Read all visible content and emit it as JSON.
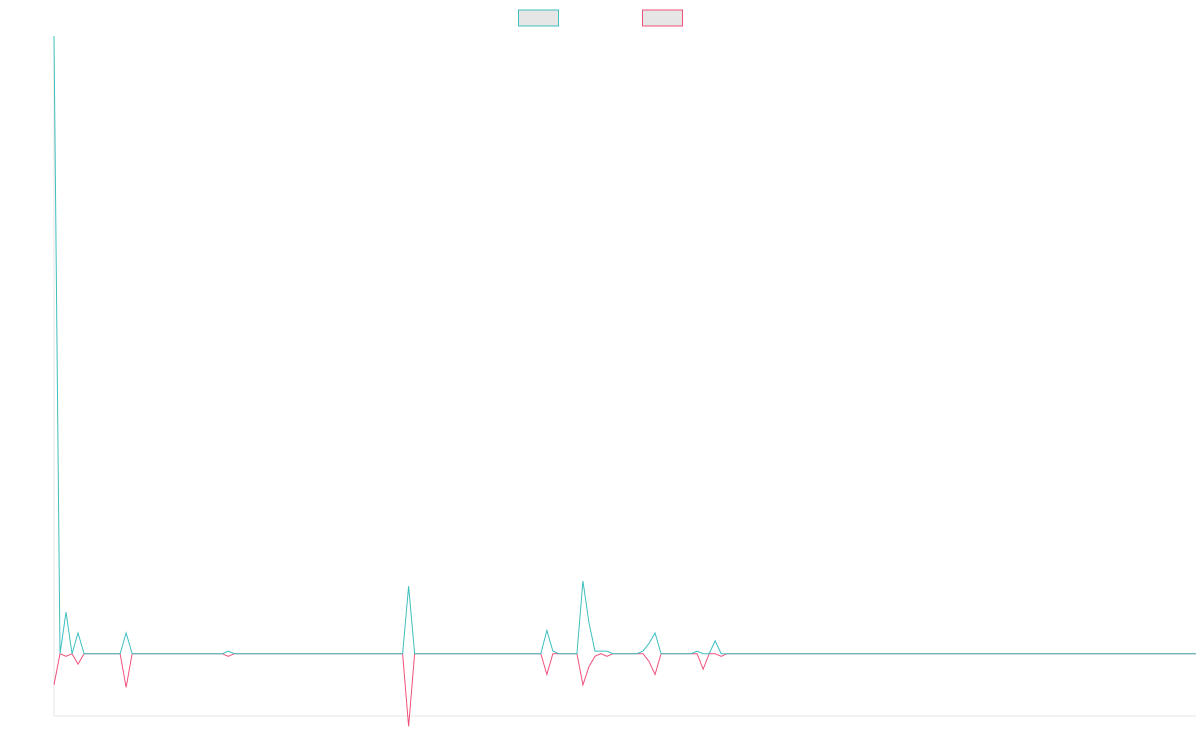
{
  "chart_data": {
    "type": "line",
    "title": "",
    "xlabel": "",
    "ylabel": "",
    "grid": false,
    "legend": "top-center",
    "y_range": [
      -1.2,
      11.9
    ],
    "x": [
      0,
      1,
      2,
      3,
      4,
      5,
      6,
      7,
      8,
      9,
      10,
      11,
      12,
      13,
      14,
      15,
      16,
      17,
      18,
      19,
      20,
      21,
      22,
      23,
      24,
      25,
      26,
      27,
      28,
      29,
      30,
      31,
      32,
      33,
      34,
      35,
      36,
      37,
      38,
      39,
      40,
      41,
      42,
      43,
      44,
      45,
      46,
      47,
      48,
      49,
      50,
      51,
      52,
      53,
      54,
      55,
      56,
      57,
      58,
      59,
      60,
      61,
      62,
      63,
      64,
      65,
      66,
      67,
      68,
      69,
      70,
      71,
      72,
      73,
      74,
      75,
      76,
      77,
      78,
      79,
      80,
      81,
      82,
      83,
      84,
      85,
      86,
      87,
      88,
      89,
      90,
      91,
      92,
      93,
      94,
      95,
      96,
      97,
      98,
      99,
      100,
      101,
      102,
      103,
      104,
      105,
      106,
      107,
      108,
      109,
      110,
      111,
      112,
      113,
      114,
      115,
      116,
      117,
      118,
      119,
      120,
      121,
      122,
      123,
      124,
      125,
      126,
      127,
      128,
      129,
      130,
      131,
      132,
      133,
      134,
      135,
      136,
      137,
      138,
      139,
      140,
      141,
      142,
      143,
      144,
      145,
      146,
      147,
      148,
      149,
      150,
      151,
      152,
      153,
      154,
      155,
      156,
      157,
      158,
      159,
      160,
      161,
      162,
      163,
      164,
      165,
      166,
      167,
      168,
      169,
      170,
      171,
      172,
      173,
      174,
      175,
      176,
      177,
      178,
      179,
      180,
      181,
      182,
      183,
      184,
      185,
      186,
      187,
      188,
      189,
      190
    ],
    "series": [
      {
        "name": "",
        "color": "#3fbfbf",
        "values": [
          11.9,
          0,
          0.8,
          0,
          0.4,
          0,
          0,
          0,
          0,
          0,
          0,
          0,
          0.4,
          0,
          0,
          0,
          0,
          0,
          0,
          0,
          0,
          0,
          0,
          0,
          0,
          0,
          0,
          0,
          0,
          0.05,
          0,
          0,
          0,
          0,
          0,
          0,
          0,
          0,
          0,
          0,
          0,
          0,
          0,
          0,
          0,
          0,
          0,
          0,
          0,
          0,
          0,
          0,
          0,
          0,
          0,
          0,
          0,
          0,
          0,
          1.3,
          0,
          0,
          0,
          0,
          0,
          0,
          0,
          0,
          0,
          0,
          0,
          0,
          0,
          0,
          0,
          0,
          0,
          0,
          0,
          0,
          0,
          0,
          0.45,
          0.05,
          0,
          0,
          0,
          0,
          1.4,
          0.6,
          0.05,
          0.05,
          0.05,
          0,
          0,
          0,
          0,
          0,
          0.05,
          0.2,
          0.4,
          0,
          0,
          0,
          0,
          0,
          0,
          0.05,
          0,
          0,
          0.25,
          0,
          0,
          0,
          0,
          0,
          0,
          0,
          0,
          0,
          0,
          0,
          0,
          0,
          0,
          0,
          0,
          0,
          0,
          0,
          0,
          0,
          0,
          0,
          0,
          0,
          0,
          0,
          0,
          0,
          0,
          0,
          0,
          0,
          0,
          0,
          0,
          0,
          0,
          0,
          0,
          0,
          0,
          0,
          0,
          0,
          0,
          0,
          0,
          0,
          0,
          0,
          0,
          0,
          0,
          0,
          0,
          0,
          0,
          0,
          0,
          0,
          0,
          0,
          0,
          0,
          0,
          0,
          0,
          0,
          0,
          0,
          0,
          0,
          0,
          0,
          0,
          0,
          0,
          0,
          0
        ]
      },
      {
        "name": "",
        "color": "#f0507a",
        "values": [
          -0.6,
          0,
          -0.05,
          0,
          -0.2,
          0,
          0,
          0,
          0,
          0,
          0,
          0,
          -0.65,
          0,
          0,
          0,
          0,
          0,
          0,
          0,
          0,
          0,
          0,
          0,
          0,
          0,
          0,
          0,
          0,
          -0.05,
          0,
          0,
          0,
          0,
          0,
          0,
          0,
          0,
          0,
          0,
          0,
          0,
          0,
          0,
          0,
          0,
          0,
          0,
          0,
          0,
          0,
          0,
          0,
          0,
          0,
          0,
          0,
          0,
          0,
          -1.4,
          0,
          0,
          0,
          0,
          0,
          0,
          0,
          0,
          0,
          0,
          0,
          0,
          0,
          0,
          0,
          0,
          0,
          0,
          0,
          0,
          0,
          0,
          -0.4,
          0,
          0,
          0,
          0,
          0,
          -0.6,
          -0.25,
          -0.05,
          0,
          -0.05,
          0,
          0,
          0,
          0,
          0,
          0,
          -0.15,
          -0.4,
          0,
          0,
          0,
          0,
          0,
          0,
          0,
          -0.3,
          0,
          0,
          -0.05,
          0,
          0,
          0,
          0,
          0,
          0,
          0,
          0,
          0,
          0,
          0,
          0,
          0,
          0,
          0,
          0,
          0,
          0,
          0,
          0,
          0,
          0,
          0,
          0,
          0,
          0,
          0,
          0,
          0,
          0,
          0,
          0,
          0,
          0,
          0,
          0,
          0,
          0,
          0,
          0,
          0,
          0,
          0,
          0,
          0,
          0,
          0,
          0,
          0,
          0,
          0,
          0,
          0,
          0,
          0,
          0,
          0,
          0,
          0,
          0,
          0,
          0,
          0,
          0,
          0,
          0,
          0,
          0,
          0,
          0,
          0,
          0,
          0,
          0,
          0,
          0,
          0,
          0,
          0
        ]
      }
    ]
  }
}
